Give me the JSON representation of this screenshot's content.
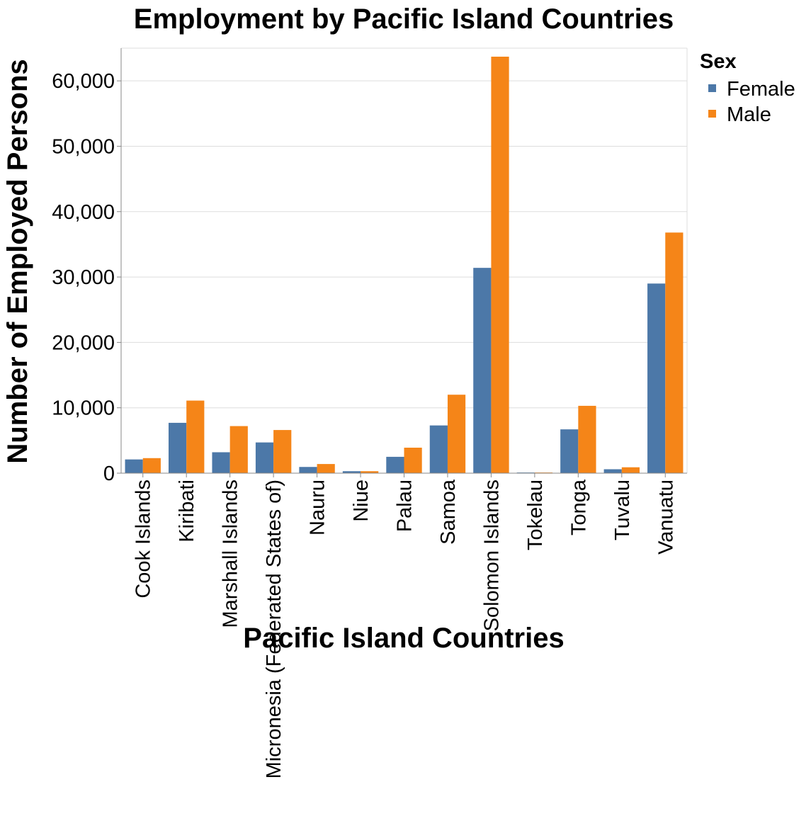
{
  "chart_data": {
    "type": "bar",
    "title": "Employment by Pacific Island Countries",
    "xlabel": "Pacific Island Countries",
    "ylabel": "Number of Employed Persons",
    "ylim": [
      0,
      65000
    ],
    "yticks": [
      0,
      10000,
      20000,
      30000,
      40000,
      50000,
      60000
    ],
    "ytick_labels": [
      "0",
      "10,000",
      "20,000",
      "30,000",
      "40,000",
      "50,000",
      "60,000"
    ],
    "grid": true,
    "legend": {
      "title": "Sex",
      "placement": "right"
    },
    "categories": [
      "Cook Islands",
      "Kiribati",
      "Marshall Islands",
      "Micronesia (Federated States of)",
      "Nauru",
      "Niue",
      "Palau",
      "Samoa",
      "Solomon Islands",
      "Tokelau",
      "Tonga",
      "Tuvalu",
      "Vanuatu"
    ],
    "series": [
      {
        "name": "Female",
        "color": "#4c78a8",
        "values": [
          2100,
          7700,
          3200,
          4700,
          950,
          300,
          2500,
          7300,
          31400,
          100,
          6700,
          600,
          29000
        ]
      },
      {
        "name": "Male",
        "color": "#f58518",
        "values": [
          2300,
          11100,
          7200,
          6600,
          1400,
          300,
          3900,
          12000,
          63700,
          100,
          10300,
          900,
          36800
        ]
      }
    ]
  }
}
